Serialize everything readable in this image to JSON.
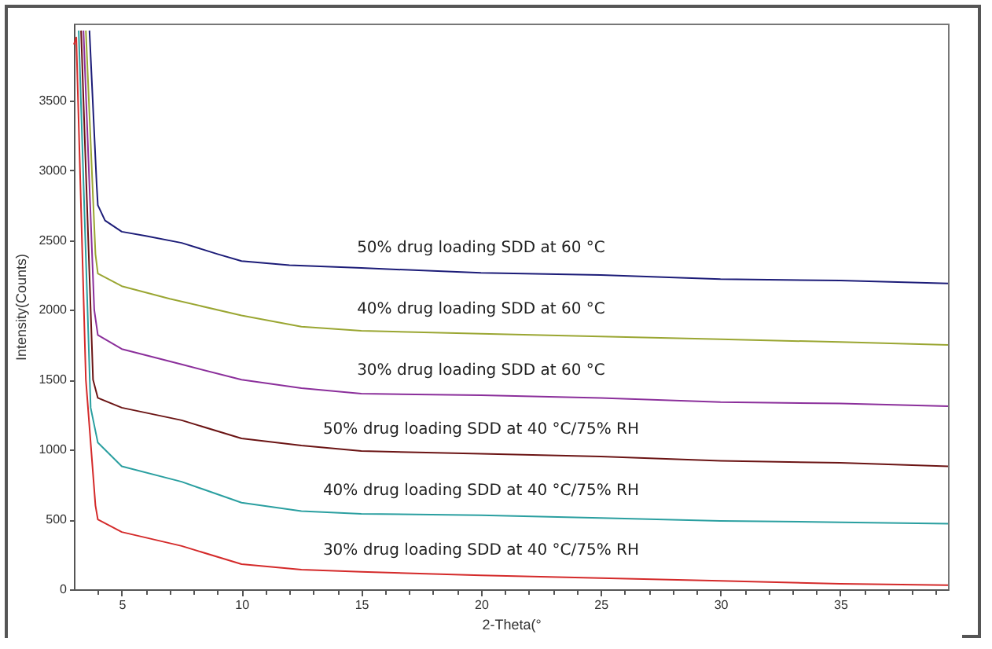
{
  "chart_data": {
    "type": "line",
    "xlabel": "2-Theta(°",
    "ylabel": "Intensity(Counts)",
    "xlim": [
      3,
      39.5
    ],
    "ylim": [
      0,
      4050
    ],
    "xticks": [
      {
        "value": 4,
        "label": null
      },
      5,
      {
        "value": 6,
        "label": null
      },
      {
        "value": 7,
        "label": null
      },
      {
        "value": 8,
        "label": null
      },
      {
        "value": 9,
        "label": null
      },
      10,
      {
        "value": 11,
        "label": null
      },
      {
        "value": 12,
        "label": null
      },
      {
        "value": 13,
        "label": null
      },
      {
        "value": 14,
        "label": null
      },
      15,
      {
        "value": 16,
        "label": null
      },
      {
        "value": 17,
        "label": null
      },
      {
        "value": 18,
        "label": null
      },
      {
        "value": 19,
        "label": null
      },
      20,
      {
        "value": 21,
        "label": null
      },
      {
        "value": 22,
        "label": null
      },
      {
        "value": 23,
        "label": null
      },
      {
        "value": 24,
        "label": null
      },
      25,
      {
        "value": 26,
        "label": null
      },
      {
        "value": 27,
        "label": null
      },
      {
        "value": 28,
        "label": null
      },
      {
        "value": 29,
        "label": null
      },
      30,
      {
        "value": 31,
        "label": null
      },
      {
        "value": 32,
        "label": null
      },
      {
        "value": 33,
        "label": null
      },
      {
        "value": 34,
        "label": null
      },
      35,
      {
        "value": 36,
        "label": null
      },
      {
        "value": 37,
        "label": null
      },
      {
        "value": 38,
        "label": null
      },
      {
        "value": 39,
        "label": null
      }
    ],
    "yticks": [
      0,
      500,
      1000,
      1500,
      2000,
      2500,
      3000,
      3500
    ],
    "grid": false,
    "legend": false,
    "marker": "none",
    "line_style": "solid",
    "series": [
      {
        "name": "50% drug loading SDD at 60 °C",
        "color": "#1c1c78",
        "x": [
          3.65,
          3.95,
          4.0,
          4.3,
          5,
          6,
          7.5,
          9,
          10,
          12,
          15,
          20,
          25,
          30,
          35,
          39.5
        ],
        "values": [
          4000,
          2900,
          2750,
          2640,
          2560,
          2530,
          2480,
          2400,
          2350,
          2320,
          2300,
          2265,
          2250,
          2220,
          2210,
          2190
        ]
      },
      {
        "name": "40% drug loading SDD at 60 °C",
        "color": "#9aa632",
        "x": [
          3.5,
          3.9,
          4.0,
          5,
          7,
          10,
          12.5,
          15,
          20,
          25,
          30,
          35,
          39.5
        ],
        "values": [
          4000,
          2400,
          2260,
          2170,
          2080,
          1960,
          1880,
          1850,
          1830,
          1810,
          1790,
          1770,
          1750
        ]
      },
      {
        "name": "30% drug loading SDD at 60 °C",
        "color": "#8b2f9b",
        "x": [
          3.4,
          3.85,
          4.0,
          5,
          7.5,
          10,
          12.5,
          15,
          20,
          25,
          30,
          35,
          39.5
        ],
        "values": [
          4000,
          2000,
          1820,
          1720,
          1610,
          1500,
          1440,
          1400,
          1390,
          1370,
          1340,
          1330,
          1310
        ]
      },
      {
        "name": "50% drug loading SDD at 40 °C/75% RH",
        "color": "#6b1414",
        "x": [
          3.3,
          3.8,
          4.0,
          5,
          7.5,
          10,
          12.5,
          15,
          20,
          25,
          30,
          35,
          39.5
        ],
        "values": [
          4000,
          1500,
          1370,
          1300,
          1210,
          1080,
          1030,
          990,
          970,
          950,
          920,
          905,
          880
        ]
      },
      {
        "name": "40% drug loading SDD at 40 °C/75% RH",
        "color": "#2a9fa0",
        "x": [
          3.2,
          3.7,
          4.0,
          5,
          7.5,
          10,
          12.5,
          15,
          20,
          25,
          30,
          35,
          39.5
        ],
        "values": [
          4000,
          1300,
          1050,
          880,
          770,
          620,
          560,
          540,
          530,
          510,
          490,
          480,
          470
        ]
      },
      {
        "name": "30% drug loading SDD at 40 °C/75% RH",
        "color": "#d42a2a",
        "x": [
          3.0,
          3.1,
          3.5,
          3.9,
          4.0,
          5,
          7.5,
          10,
          12.5,
          15,
          20,
          25,
          30,
          35,
          39.5
        ],
        "values": [
          3900,
          3950,
          1500,
          600,
          500,
          410,
          310,
          180,
          140,
          125,
          100,
          80,
          60,
          40,
          30
        ]
      }
    ]
  }
}
